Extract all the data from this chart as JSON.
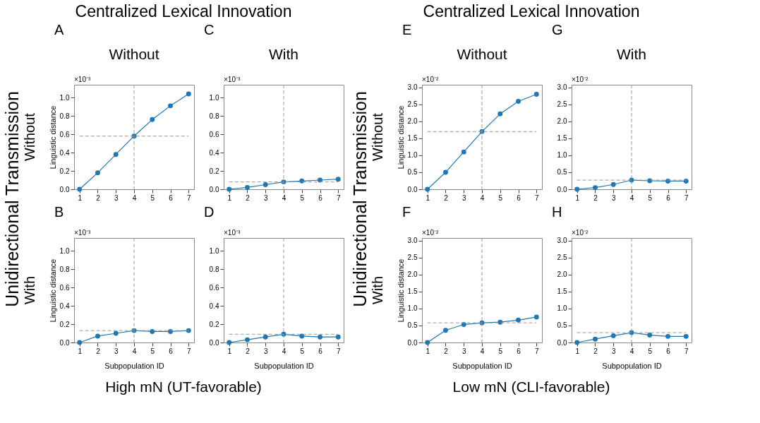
{
  "chart_data": [
    {
      "type": "line",
      "title": "A",
      "ylabel": "Linguistic distance",
      "x": [
        1,
        2,
        3,
        4,
        5,
        6,
        7
      ],
      "xlim": [
        0.7,
        7.3
      ],
      "xticks": [
        1,
        2,
        3,
        4,
        5,
        6,
        7
      ],
      "ylim": [
        0,
        1.14
      ],
      "yticks": [
        {
          "value": 0,
          "label": "0.0"
        },
        {
          "value": 0.2,
          "label": "0.2"
        },
        {
          "value": 0.4,
          "label": "0.4"
        },
        {
          "value": 0.6,
          "label": "0.6"
        },
        {
          "value": 0.8,
          "label": "0.8"
        },
        {
          "value": 1.0,
          "label": "1.0"
        }
      ],
      "marker": "circle",
      "line_style": "solid",
      "series": [
        {
          "color": "#1f77b4",
          "values": [
            0,
            0.18,
            0.38,
            0.58,
            0.76,
            0.91,
            1.04
          ]
        }
      ],
      "ref_lines": [
        {
          "axis": "x",
          "value": 4,
          "color": "#999999",
          "line_style": "dashed"
        },
        {
          "axis": "y",
          "value": 0.58,
          "color": "#999999",
          "line_style": "dashed"
        }
      ],
      "annotations": [
        "×10⁻³",
        "Without",
        "Without",
        "Centralized Lexical Innovation",
        "Unidirectional Transmission"
      ]
    },
    {
      "type": "line",
      "title": "C",
      "x": [
        1,
        2,
        3,
        4,
        5,
        6,
        7
      ],
      "xlim": [
        0.7,
        7.3
      ],
      "xticks": [
        1,
        2,
        3,
        4,
        5,
        6,
        7
      ],
      "ylim": [
        0,
        1.14
      ],
      "yticks": [
        {
          "value": 0,
          "label": "0.0"
        },
        {
          "value": 0.2,
          "label": "0.2"
        },
        {
          "value": 0.4,
          "label": "0.4"
        },
        {
          "value": 0.6,
          "label": "0.6"
        },
        {
          "value": 0.8,
          "label": "0.8"
        },
        {
          "value": 1.0,
          "label": "1.0"
        }
      ],
      "marker": "circle",
      "line_style": "solid",
      "series": [
        {
          "color": "#1f77b4",
          "values": [
            0,
            0.02,
            0.05,
            0.08,
            0.09,
            0.1,
            0.11
          ]
        }
      ],
      "ref_lines": [
        {
          "axis": "x",
          "value": 4,
          "color": "#999999",
          "line_style": "dashed"
        },
        {
          "axis": "y",
          "value": 0.08,
          "color": "#999999",
          "line_style": "dashed"
        }
      ],
      "annotations": [
        "×10⁻³",
        "With"
      ]
    },
    {
      "type": "line",
      "title": "E",
      "ylabel": "Linguistic distance",
      "x": [
        1,
        2,
        3,
        4,
        5,
        6,
        7
      ],
      "xlim": [
        0.7,
        7.3
      ],
      "xticks": [
        1,
        2,
        3,
        4,
        5,
        6,
        7
      ],
      "ylim": [
        0,
        3.08
      ],
      "yticks": [
        {
          "value": 0,
          "label": "0.0"
        },
        {
          "value": 0.5,
          "label": "0.5"
        },
        {
          "value": 1.0,
          "label": "1.0"
        },
        {
          "value": 1.5,
          "label": "1.5"
        },
        {
          "value": 2.0,
          "label": "2.0"
        },
        {
          "value": 2.5,
          "label": "2.5"
        },
        {
          "value": 3.0,
          "label": "3.0"
        }
      ],
      "marker": "circle",
      "line_style": "solid",
      "series": [
        {
          "color": "#1f77b4",
          "values": [
            0,
            0.5,
            1.1,
            1.7,
            2.22,
            2.59,
            2.8
          ]
        }
      ],
      "ref_lines": [
        {
          "axis": "x",
          "value": 4,
          "color": "#999999",
          "line_style": "dashed"
        },
        {
          "axis": "y",
          "value": 1.7,
          "color": "#999999",
          "line_style": "dashed"
        }
      ],
      "annotations": [
        "×10⁻²",
        "Without",
        "Without",
        "Centralized Lexical Innovation",
        "Unidirectional Transmission"
      ]
    },
    {
      "type": "line",
      "title": "G",
      "x": [
        1,
        2,
        3,
        4,
        5,
        6,
        7
      ],
      "xlim": [
        0.7,
        7.3
      ],
      "xticks": [
        1,
        2,
        3,
        4,
        5,
        6,
        7
      ],
      "ylim": [
        0,
        3.08
      ],
      "yticks": [
        {
          "value": 0,
          "label": "0.0"
        },
        {
          "value": 0.5,
          "label": "0.5"
        },
        {
          "value": 1.0,
          "label": "1.0"
        },
        {
          "value": 1.5,
          "label": "1.5"
        },
        {
          "value": 2.0,
          "label": "2.0"
        },
        {
          "value": 2.5,
          "label": "2.5"
        },
        {
          "value": 3.0,
          "label": "3.0"
        }
      ],
      "marker": "circle",
      "line_style": "solid",
      "series": [
        {
          "color": "#1f77b4",
          "values": [
            0,
            0.05,
            0.14,
            0.27,
            0.25,
            0.24,
            0.24
          ]
        }
      ],
      "ref_lines": [
        {
          "axis": "x",
          "value": 4,
          "color": "#999999",
          "line_style": "dashed"
        },
        {
          "axis": "y",
          "value": 0.27,
          "color": "#999999",
          "line_style": "dashed"
        }
      ],
      "annotations": [
        "×10⁻²",
        "With"
      ]
    },
    {
      "type": "line",
      "title": "B",
      "xlabel": "Subpopulation ID",
      "ylabel": "Linguistic distance",
      "x": [
        1,
        2,
        3,
        4,
        5,
        6,
        7
      ],
      "xlim": [
        0.7,
        7.3
      ],
      "xticks": [
        1,
        2,
        3,
        4,
        5,
        6,
        7
      ],
      "ylim": [
        0,
        1.14
      ],
      "yticks": [
        {
          "value": 0,
          "label": "0.0"
        },
        {
          "value": 0.2,
          "label": "0.2"
        },
        {
          "value": 0.4,
          "label": "0.4"
        },
        {
          "value": 0.6,
          "label": "0.6"
        },
        {
          "value": 0.8,
          "label": "0.8"
        },
        {
          "value": 1.0,
          "label": "1.0"
        }
      ],
      "marker": "circle",
      "line_style": "solid",
      "series": [
        {
          "color": "#1f77b4",
          "values": [
            0,
            0.07,
            0.1,
            0.13,
            0.12,
            0.12,
            0.13
          ]
        }
      ],
      "ref_lines": [
        {
          "axis": "x",
          "value": 4,
          "color": "#999999",
          "line_style": "dashed"
        },
        {
          "axis": "y",
          "value": 0.13,
          "color": "#999999",
          "line_style": "dashed"
        }
      ],
      "annotations": [
        "×10⁻³",
        "With",
        "High mN (UT-favorable)"
      ]
    },
    {
      "type": "line",
      "title": "D",
      "xlabel": "Subpopulation ID",
      "x": [
        1,
        2,
        3,
        4,
        5,
        6,
        7
      ],
      "xlim": [
        0.7,
        7.3
      ],
      "xticks": [
        1,
        2,
        3,
        4,
        5,
        6,
        7
      ],
      "ylim": [
        0,
        1.14
      ],
      "yticks": [
        {
          "value": 0,
          "label": "0.0"
        },
        {
          "value": 0.2,
          "label": "0.2"
        },
        {
          "value": 0.4,
          "label": "0.4"
        },
        {
          "value": 0.6,
          "label": "0.6"
        },
        {
          "value": 0.8,
          "label": "0.8"
        },
        {
          "value": 1.0,
          "label": "1.0"
        }
      ],
      "marker": "circle",
      "line_style": "solid",
      "series": [
        {
          "color": "#1f77b4",
          "values": [
            0,
            0.03,
            0.06,
            0.09,
            0.07,
            0.06,
            0.06
          ]
        }
      ],
      "ref_lines": [
        {
          "axis": "x",
          "value": 4,
          "color": "#999999",
          "line_style": "dashed"
        },
        {
          "axis": "y",
          "value": 0.09,
          "color": "#999999",
          "line_style": "dashed"
        }
      ],
      "annotations": [
        "×10⁻³"
      ]
    },
    {
      "type": "line",
      "title": "F",
      "xlabel": "Subpopulation ID",
      "ylabel": "Linguistic distance",
      "x": [
        1,
        2,
        3,
        4,
        5,
        6,
        7
      ],
      "xlim": [
        0.7,
        7.3
      ],
      "xticks": [
        1,
        2,
        3,
        4,
        5,
        6,
        7
      ],
      "ylim": [
        0,
        3.08
      ],
      "yticks": [
        {
          "value": 0,
          "label": "0.0"
        },
        {
          "value": 0.5,
          "label": "0.5"
        },
        {
          "value": 1.0,
          "label": "1.0"
        },
        {
          "value": 1.5,
          "label": "1.5"
        },
        {
          "value": 2.0,
          "label": "2.0"
        },
        {
          "value": 2.5,
          "label": "2.5"
        },
        {
          "value": 3.0,
          "label": "3.0"
        }
      ],
      "marker": "circle",
      "line_style": "solid",
      "series": [
        {
          "color": "#1f77b4",
          "values": [
            0,
            0.36,
            0.53,
            0.58,
            0.6,
            0.66,
            0.75
          ]
        }
      ],
      "ref_lines": [
        {
          "axis": "x",
          "value": 4,
          "color": "#999999",
          "line_style": "dashed"
        },
        {
          "axis": "y",
          "value": 0.58,
          "color": "#999999",
          "line_style": "dashed"
        }
      ],
      "annotations": [
        "×10⁻²",
        "With",
        "Low mN (CLI-favorable)"
      ]
    },
    {
      "type": "line",
      "title": "H",
      "xlabel": "Subpopulation ID",
      "x": [
        1,
        2,
        3,
        4,
        5,
        6,
        7
      ],
      "xlim": [
        0.7,
        7.3
      ],
      "xticks": [
        1,
        2,
        3,
        4,
        5,
        6,
        7
      ],
      "ylim": [
        0,
        3.08
      ],
      "yticks": [
        {
          "value": 0,
          "label": "0.0"
        },
        {
          "value": 0.5,
          "label": "0.5"
        },
        {
          "value": 1.0,
          "label": "1.0"
        },
        {
          "value": 1.5,
          "label": "1.5"
        },
        {
          "value": 2.0,
          "label": "2.0"
        },
        {
          "value": 2.5,
          "label": "2.5"
        },
        {
          "value": 3.0,
          "label": "3.0"
        }
      ],
      "marker": "circle",
      "line_style": "solid",
      "series": [
        {
          "color": "#1f77b4",
          "values": [
            0,
            0.1,
            0.2,
            0.29,
            0.22,
            0.18,
            0.18
          ]
        }
      ],
      "ref_lines": [
        {
          "axis": "x",
          "value": 4,
          "color": "#999999",
          "line_style": "dashed"
        },
        {
          "axis": "y",
          "value": 0.29,
          "color": "#999999",
          "line_style": "dashed"
        }
      ],
      "annotations": [
        "×10⁻²"
      ]
    }
  ]
}
